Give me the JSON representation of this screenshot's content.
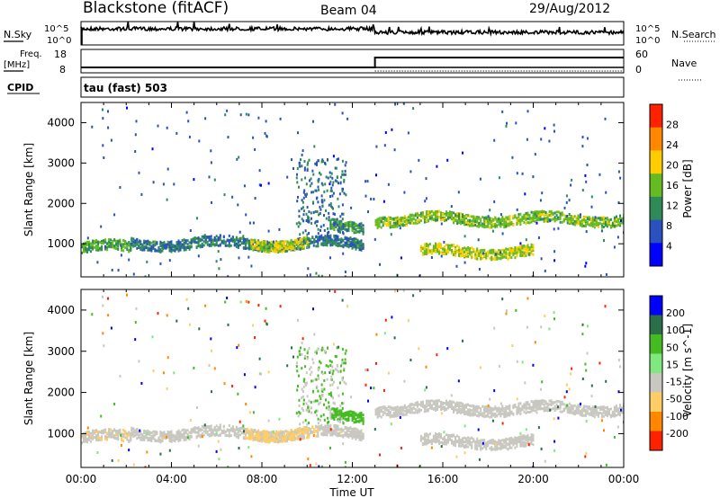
{
  "header": {
    "station": "Blackstone (fitACF)",
    "beam": "Beam 04",
    "date": "29/Aug/2012"
  },
  "panels": {
    "nsky": {
      "left_label": "N.Sky",
      "left_ticks": [
        "10^5",
        "10^0"
      ],
      "right_ticks": [
        "10^5",
        "10^0"
      ],
      "right_label": "N.Search"
    },
    "freq": {
      "left_label_line1": "Freq.",
      "left_label_line2": "[MHz]",
      "left_ticks": [
        "18",
        "8"
      ],
      "right_ticks": [
        "60",
        "0"
      ],
      "right_label": "Nave",
      "freq_mhz_values": [
        10,
        10
      ],
      "nave_change_hour": 13.0,
      "nave_before": 10,
      "nave_after": 40
    },
    "cpid": {
      "label": "CPID",
      "text": "tau (fast) 503"
    }
  },
  "chart_data": [
    {
      "type": "heatmap",
      "title": "",
      "parameter": "Power",
      "colorbar_label": "Power [dB]",
      "colorbar_ticks": [
        "28",
        "24",
        "20",
        "16",
        "12",
        "8",
        "4"
      ],
      "colorbar_range": [
        0,
        32
      ],
      "colorbar_colors": [
        "#0000ff",
        "#2a52be",
        "#2e8b57",
        "#66bb22",
        "#ffcc00",
        "#ff8800",
        "#ff2200"
      ],
      "xlabel": "",
      "ylabel": "Slant Range [km]",
      "y_ticks": [
        "1000",
        "2000",
        "3000",
        "4000"
      ],
      "ylim": [
        180,
        4500
      ],
      "xlim": [
        0,
        24
      ],
      "echo_bands": [
        {
          "start_hour": 0,
          "end_hour": 2.2,
          "range_km": 900,
          "power_db": 14
        },
        {
          "start_hour": 2.2,
          "end_hour": 12.5,
          "range_km": 1000,
          "power_db": 10
        },
        {
          "start_hour": 7.5,
          "end_hour": 10.0,
          "range_km": 1000,
          "power_db": 18
        },
        {
          "start_hour": 11.0,
          "end_hour": 12.5,
          "range_km": 1400,
          "power_db": 12
        },
        {
          "start_hour": 13.0,
          "end_hour": 24.0,
          "range_km": 1600,
          "power_db": 16
        },
        {
          "start_hour": 15.0,
          "end_hour": 20.0,
          "range_km": 800,
          "power_db": 18
        }
      ]
    },
    {
      "type": "heatmap",
      "title": "",
      "parameter": "Velocity",
      "colorbar_label": "Velocity [m s^-1]",
      "colorbar_ticks": [
        "200",
        "100",
        "50",
        "15",
        "-15",
        "-50",
        "-100",
        "-200"
      ],
      "colorbar_colors": [
        "#0000ff",
        "#2a6e4a",
        "#44bb22",
        "#7fe87f",
        "#c8c8c0",
        "#ffcc66",
        "#ff8800",
        "#ff2200"
      ],
      "xlabel": "Time UT",
      "x_ticks": [
        "00:00",
        "04:00",
        "08:00",
        "12:00",
        "16:00",
        "20:00",
        "00:00"
      ],
      "ylabel": "Slant Range [km]",
      "y_ticks": [
        "1000",
        "2000",
        "3000",
        "4000"
      ],
      "ylim": [
        180,
        4500
      ],
      "xlim": [
        0,
        24
      ]
    }
  ]
}
